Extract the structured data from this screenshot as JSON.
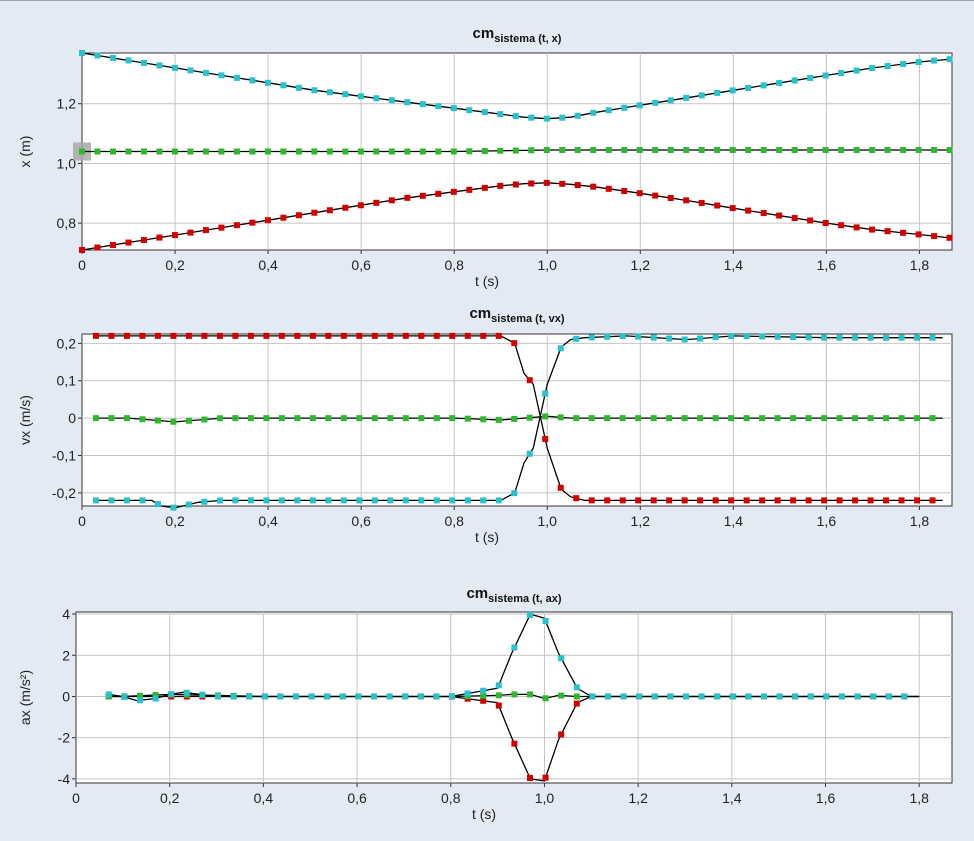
{
  "colors": {
    "red": "#d40000",
    "green": "#2eb82e",
    "cyan": "#27c2cc",
    "background": "#e3eaf3"
  },
  "chart_data": [
    {
      "type": "scatter",
      "title": "cm",
      "title_sub": "sistema (t, x)",
      "xlabel": "t (s)",
      "ylabel": "x (m)",
      "xlim": [
        0,
        1.87
      ],
      "ylim": [
        0.71,
        1.37
      ],
      "xticks": [
        0,
        0.2,
        0.4,
        0.6,
        0.8,
        1.0,
        1.2,
        1.4,
        1.6,
        1.8
      ],
      "xtick_labels": [
        "0",
        "0,2",
        "0,4",
        "0,6",
        "0,8",
        "1,0",
        "1,2",
        "1,4",
        "1,6",
        "1,8"
      ],
      "yticks": [
        0.8,
        1.0,
        1.2
      ],
      "ytick_labels": [
        "0,8",
        "1,0",
        "1,2"
      ],
      "grid": true,
      "series": [
        {
          "color": "red",
          "x": [
            0,
            0.1,
            0.2,
            0.3,
            0.4,
            0.5,
            0.6,
            0.7,
            0.8,
            0.9,
            0.95,
            1.0,
            1.05,
            1.1,
            1.2,
            1.3,
            1.4,
            1.5,
            1.6,
            1.7,
            1.8,
            1.87
          ],
          "y": [
            0.71,
            0.735,
            0.76,
            0.785,
            0.81,
            0.835,
            0.86,
            0.885,
            0.905,
            0.925,
            0.932,
            0.935,
            0.93,
            0.922,
            0.9,
            0.876,
            0.85,
            0.825,
            0.8,
            0.778,
            0.762,
            0.75
          ]
        },
        {
          "color": "green",
          "x": [
            0,
            0.2,
            0.4,
            0.6,
            0.8,
            1.0,
            1.2,
            1.4,
            1.6,
            1.87
          ],
          "y": [
            1.04,
            1.04,
            1.04,
            1.04,
            1.04,
            1.045,
            1.045,
            1.045,
            1.045,
            1.045
          ]
        },
        {
          "color": "cyan",
          "x": [
            0,
            0.1,
            0.2,
            0.3,
            0.4,
            0.5,
            0.6,
            0.7,
            0.8,
            0.9,
            0.95,
            1.0,
            1.05,
            1.1,
            1.2,
            1.3,
            1.4,
            1.5,
            1.6,
            1.7,
            1.8,
            1.87
          ],
          "y": [
            1.37,
            1.345,
            1.32,
            1.295,
            1.27,
            1.245,
            1.225,
            1.205,
            1.185,
            1.165,
            1.155,
            1.15,
            1.155,
            1.17,
            1.195,
            1.22,
            1.245,
            1.27,
            1.295,
            1.32,
            1.34,
            1.35
          ]
        }
      ],
      "highlight_point": {
        "x": 0,
        "y": 1.04
      }
    },
    {
      "type": "scatter",
      "title": "cm",
      "title_sub": "sistema (t, vx)",
      "xlabel": "t (s)",
      "ylabel": "vx (m/s)",
      "xlim": [
        0,
        1.87
      ],
      "ylim": [
        -0.235,
        0.225
      ],
      "xticks": [
        0,
        0.2,
        0.4,
        0.6,
        0.8,
        1.0,
        1.2,
        1.4,
        1.6,
        1.8
      ],
      "xtick_labels": [
        "0",
        "0,2",
        "0,4",
        "0,6",
        "0,8",
        "1,0",
        "1,2",
        "1,4",
        "1,6",
        "1,8"
      ],
      "yticks": [
        -0.2,
        -0.1,
        0,
        0.1,
        0.2
      ],
      "ytick_labels": [
        "-0,2",
        "-0,1",
        "0",
        "0,1",
        "0,2"
      ],
      "grid": true,
      "series": [
        {
          "color": "red",
          "x": [
            0.03,
            0.2,
            0.4,
            0.6,
            0.8,
            0.9,
            0.93,
            0.95,
            0.97,
            1.0,
            1.03,
            1.05,
            1.08,
            1.2,
            1.4,
            1.6,
            1.85
          ],
          "y": [
            0.22,
            0.22,
            0.22,
            0.22,
            0.22,
            0.22,
            0.2,
            0.12,
            0.09,
            -0.08,
            -0.19,
            -0.21,
            -0.22,
            -0.22,
            -0.22,
            -0.22,
            -0.22
          ]
        },
        {
          "color": "green",
          "x": [
            0.03,
            0.1,
            0.15,
            0.2,
            0.25,
            0.3,
            0.4,
            0.6,
            0.8,
            0.9,
            0.95,
            1.0,
            1.05,
            1.2,
            1.4,
            1.6,
            1.85
          ],
          "y": [
            0,
            0,
            -0.005,
            -0.01,
            -0.005,
            0,
            0,
            0,
            0,
            -0.005,
            0,
            0.005,
            0,
            0,
            0,
            0,
            0
          ]
        },
        {
          "color": "cyan",
          "x": [
            0.03,
            0.1,
            0.15,
            0.17,
            0.2,
            0.25,
            0.3,
            0.4,
            0.6,
            0.8,
            0.9,
            0.93,
            0.95,
            0.97,
            1.0,
            1.03,
            1.05,
            1.08,
            1.17,
            1.3,
            1.4,
            1.6,
            1.85
          ],
          "y": [
            -0.22,
            -0.22,
            -0.22,
            -0.235,
            -0.24,
            -0.225,
            -0.22,
            -0.22,
            -0.22,
            -0.22,
            -0.22,
            -0.2,
            -0.12,
            -0.08,
            0.09,
            0.19,
            0.21,
            0.215,
            0.22,
            0.21,
            0.22,
            0.215,
            0.215
          ]
        }
      ]
    },
    {
      "type": "scatter",
      "title": "cm",
      "title_sub": "sistema (t, ax)",
      "xlabel": "t (s)",
      "ylabel": "ax (m/s²)",
      "xlim": [
        0,
        1.87
      ],
      "ylim": [
        -4.2,
        4.1
      ],
      "xticks": [
        0,
        0.2,
        0.4,
        0.6,
        0.8,
        1.0,
        1.2,
        1.4,
        1.6,
        1.8
      ],
      "xtick_labels": [
        "0",
        "0,2",
        "0,4",
        "0,6",
        "0,8",
        "1,0",
        "1,2",
        "1,4",
        "1,6",
        "1,8"
      ],
      "yticks": [
        -4,
        -2,
        0,
        2,
        4
      ],
      "ytick_labels": [
        "-4",
        "-2",
        "0",
        "2",
        "4"
      ],
      "grid": true,
      "series": [
        {
          "color": "red",
          "x": [
            0.07,
            0.1,
            0.13,
            0.2,
            0.3,
            0.4,
            0.6,
            0.8,
            0.9,
            0.93,
            0.97,
            1.0,
            1.03,
            1.07,
            1.1,
            1.2,
            1.4,
            1.6,
            1.8
          ],
          "y": [
            0,
            0,
            0,
            0,
            0,
            0,
            0,
            0,
            -0.3,
            -2.0,
            -4.0,
            -4.1,
            -2.1,
            -0.3,
            0,
            0,
            0,
            0,
            0
          ]
        },
        {
          "color": "green",
          "x": [
            0.07,
            0.1,
            0.2,
            0.4,
            0.6,
            0.8,
            0.9,
            0.93,
            0.97,
            1.0,
            1.03,
            1.07,
            1.1,
            1.2,
            1.4,
            1.6,
            1.8
          ],
          "y": [
            0,
            0,
            0.1,
            0,
            0,
            0,
            0.05,
            0.1,
            0.1,
            -0.1,
            0.05,
            0,
            0,
            0,
            0,
            0,
            0
          ]
        },
        {
          "color": "cyan",
          "x": [
            0.07,
            0.1,
            0.13,
            0.17,
            0.2,
            0.23,
            0.3,
            0.4,
            0.6,
            0.8,
            0.9,
            0.93,
            0.97,
            1.0,
            1.03,
            1.07,
            1.1,
            1.2,
            1.4,
            1.6,
            1.8
          ],
          "y": [
            0.1,
            0,
            -0.2,
            -0.1,
            0.1,
            0.2,
            0,
            0,
            0,
            0,
            0.4,
            2.1,
            4.0,
            3.8,
            2.1,
            0.4,
            0,
            0,
            0,
            0,
            0
          ]
        }
      ]
    }
  ]
}
